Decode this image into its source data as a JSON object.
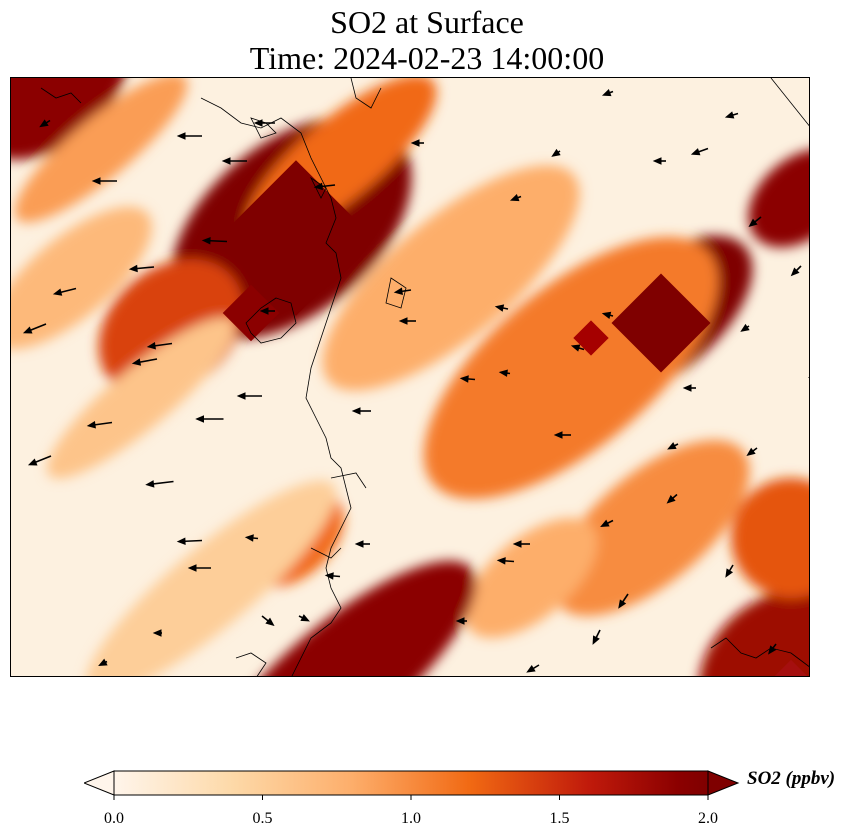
{
  "title": {
    "line1": "SO2 at Surface",
    "line2": "Time: 2024-02-23 14:00:00"
  },
  "colorbar": {
    "label": "SO2 (ppbv)",
    "min": 0.0,
    "max": 2.0,
    "ticks": [
      "0.0",
      "0.5",
      "1.0",
      "1.5",
      "2.0"
    ],
    "extend": "both",
    "colormap_stops": [
      "#fff5eb",
      "#fdd9a8",
      "#fdae6b",
      "#f16913",
      "#c92a12",
      "#8b0000",
      "#7f0000"
    ]
  },
  "map": {
    "field_pattern": "diagonal plume bands of SO2 concentration running NW-SE",
    "hotspots": [
      {
        "area": "top-left corner",
        "level": 1.9
      },
      {
        "area": "center-left plume",
        "level": 2.0
      },
      {
        "area": "upper-right plume",
        "level": 2.0
      },
      {
        "area": "right edge top",
        "level": 1.9
      },
      {
        "area": "bottom-left coast",
        "level": 1.9
      },
      {
        "area": "bottom-right corner",
        "level": 1.8
      }
    ],
    "coastlines": true,
    "wind_vectors": true
  }
}
